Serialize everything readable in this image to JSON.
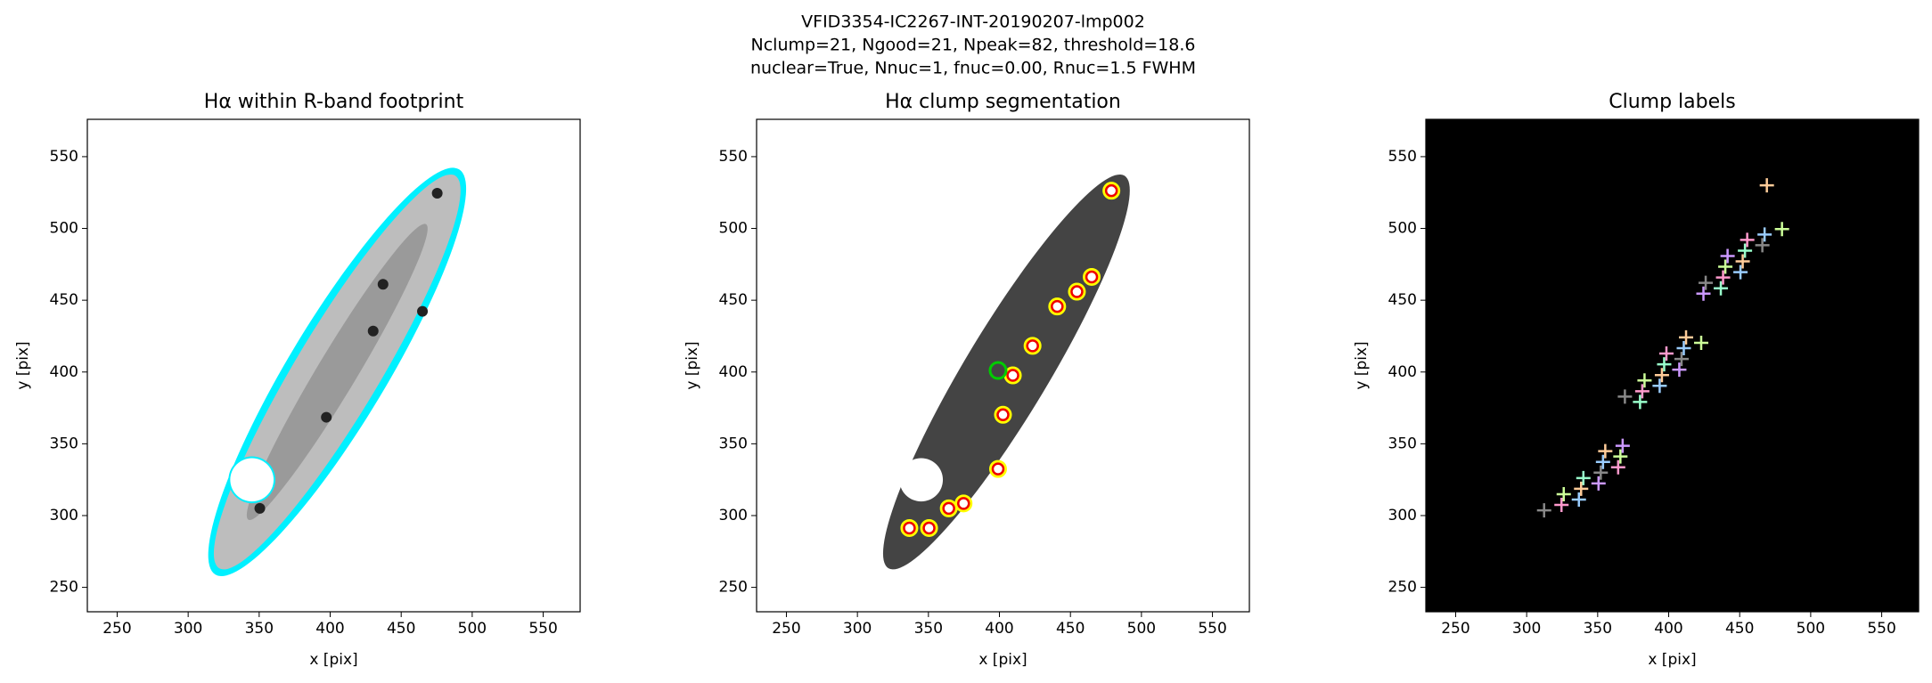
{
  "suptitle": [
    "VFID3354-IC2267-INT-20190207-lmp002",
    "Nclump=21, Ngood=21, Npeak=82, threshold=18.6",
    "nuclear=True, Nnuc=1, fnuc=0.00, Rnuc=1.5 FWHM"
  ],
  "chart_data": [
    {
      "type": "image",
      "title": "Hα within R-band footprint",
      "xlabel": "x [pix]",
      "ylabel": "y [pix]",
      "xlim": [
        229,
        576
      ],
      "ylim": [
        233,
        576
      ],
      "xticks": [
        250,
        300,
        350,
        400,
        450,
        500,
        550
      ],
      "yticks": [
        250,
        300,
        350,
        400,
        450,
        500,
        550
      ],
      "background": "#ffffff"
    },
    {
      "type": "image",
      "title": "Hα clump segmentation",
      "xlabel": "x [pix]",
      "ylabel": "y [pix]",
      "xlim": [
        229,
        576
      ],
      "ylim": [
        233,
        576
      ],
      "xticks": [
        250,
        300,
        350,
        400,
        450,
        500,
        550
      ],
      "yticks": [
        250,
        300,
        350,
        400,
        450,
        500,
        550
      ],
      "background": "#ffffff"
    },
    {
      "type": "image",
      "title": "Clump labels",
      "xlabel": "x [pix]",
      "ylabel": "y [pix]",
      "xlim": [
        229,
        576
      ],
      "ylim": [
        233,
        576
      ],
      "xticks": [
        250,
        300,
        350,
        400,
        450,
        500,
        550
      ],
      "yticks": [
        250,
        300,
        350,
        400,
        450,
        500,
        550
      ],
      "background": "#000000"
    }
  ]
}
